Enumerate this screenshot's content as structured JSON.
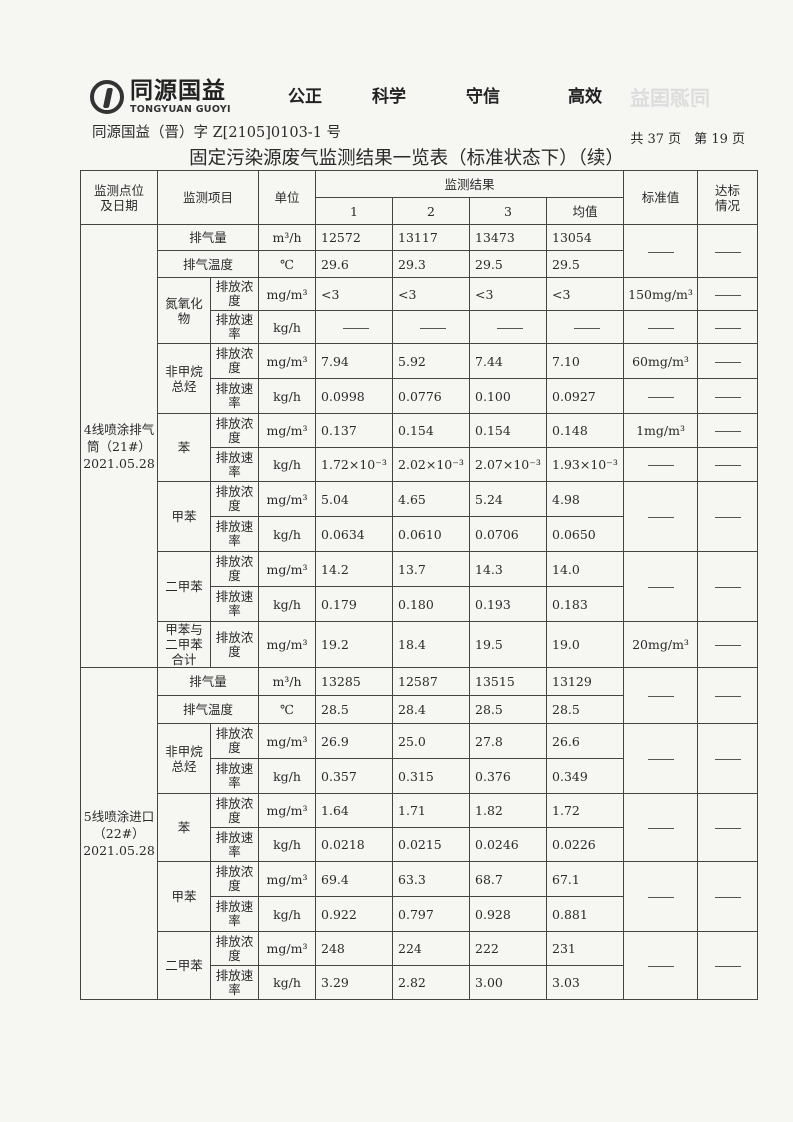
{
  "header": {
    "logo_cn": "同源国益",
    "logo_en": "TONGYUAN GUOYI",
    "motto": [
      "公正",
      "科学",
      "守信",
      "高效"
    ],
    "report_no": "同源国益（晋）字 Z[2105]0103-1 号",
    "page_info": "共 37 页　第 19 页",
    "title": "固定污染源废气监测结果一览表（标准状态下）（续）"
  },
  "table": {
    "headers": {
      "site": "监测点位及日期",
      "item": "监测项目",
      "unit": "单位",
      "results": "监测结果",
      "runs": [
        "1",
        "2",
        "3",
        "均值"
      ],
      "standard": "标准值",
      "compliance": "达标情况"
    },
    "sections": [
      {
        "site": "4线喷涂排气筒（21#）2021.05.28",
        "groups": [
          {
            "standard": "——",
            "compliance": "——",
            "rows": [
              {
                "item": "排气量",
                "unit": "m³/h",
                "values": [
                  "12572",
                  "13117",
                  "13473",
                  "13054"
                ]
              },
              {
                "item": "排气温度",
                "unit": "℃",
                "values": [
                  "29.6",
                  "29.3",
                  "29.5",
                  "29.5"
                ]
              }
            ]
          },
          {
            "item": "氮氧化物",
            "rows": [
              {
                "sub": "排放浓度",
                "unit": "mg/m³",
                "values": [
                  "<3",
                  "<3",
                  "<3",
                  "<3"
                ],
                "standard": "150mg/m³",
                "compliance": "——"
              },
              {
                "sub": "排放速率",
                "unit": "kg/h",
                "values": [
                  "——",
                  "——",
                  "——",
                  "——"
                ],
                "standard": "——",
                "compliance": "——"
              }
            ]
          },
          {
            "item": "非甲烷总烃",
            "rows": [
              {
                "sub": "排放浓度",
                "unit": "mg/m³",
                "values": [
                  "7.94",
                  "5.92",
                  "7.44",
                  "7.10"
                ],
                "standard": "60mg/m³",
                "compliance": "——"
              },
              {
                "sub": "排放速率",
                "unit": "kg/h",
                "values": [
                  "0.0998",
                  "0.0776",
                  "0.100",
                  "0.0927"
                ],
                "standard": "——",
                "compliance": "——"
              }
            ]
          },
          {
            "item": "苯",
            "rows": [
              {
                "sub": "排放浓度",
                "unit": "mg/m³",
                "values": [
                  "0.137",
                  "0.154",
                  "0.154",
                  "0.148"
                ],
                "standard": "1mg/m³",
                "compliance": "——"
              },
              {
                "sub": "排放速率",
                "unit": "kg/h",
                "values": [
                  "1.72×10⁻³",
                  "2.02×10⁻³",
                  "2.07×10⁻³",
                  "1.93×10⁻³"
                ],
                "standard": "——",
                "compliance": "——"
              }
            ]
          },
          {
            "item": "甲苯",
            "standard": "——",
            "compliance": "——",
            "rows": [
              {
                "sub": "排放浓度",
                "unit": "mg/m³",
                "values": [
                  "5.04",
                  "4.65",
                  "5.24",
                  "4.98"
                ]
              },
              {
                "sub": "排放速率",
                "unit": "kg/h",
                "values": [
                  "0.0634",
                  "0.0610",
                  "0.0706",
                  "0.0650"
                ]
              }
            ]
          },
          {
            "item": "二甲苯",
            "standard": "——",
            "compliance": "——",
            "rows": [
              {
                "sub": "排放浓度",
                "unit": "mg/m³",
                "values": [
                  "14.2",
                  "13.7",
                  "14.3",
                  "14.0"
                ]
              },
              {
                "sub": "排放速率",
                "unit": "kg/h",
                "values": [
                  "0.179",
                  "0.180",
                  "0.193",
                  "0.183"
                ]
              }
            ]
          },
          {
            "item": "甲苯与二甲苯合计",
            "rows": [
              {
                "sub": "排放浓度",
                "unit": "mg/m³",
                "values": [
                  "19.2",
                  "18.4",
                  "19.5",
                  "19.0"
                ],
                "standard": "20mg/m³",
                "compliance": "——"
              }
            ]
          }
        ]
      },
      {
        "site": "5线喷涂进口（22#）2021.05.28",
        "groups": [
          {
            "standard": "——",
            "compliance": "——",
            "rows": [
              {
                "item": "排气量",
                "unit": "m³/h",
                "values": [
                  "13285",
                  "12587",
                  "13515",
                  "13129"
                ]
              },
              {
                "item": "排气温度",
                "unit": "℃",
                "values": [
                  "28.5",
                  "28.4",
                  "28.5",
                  "28.5"
                ]
              }
            ]
          },
          {
            "item": "非甲烷总烃",
            "standard": "——",
            "compliance": "——",
            "rows": [
              {
                "sub": "排放浓度",
                "unit": "mg/m³",
                "values": [
                  "26.9",
                  "25.0",
                  "27.8",
                  "26.6"
                ]
              },
              {
                "sub": "排放速率",
                "unit": "kg/h",
                "values": [
                  "0.357",
                  "0.315",
                  "0.376",
                  "0.349"
                ]
              }
            ]
          },
          {
            "item": "苯",
            "standard": "——",
            "compliance": "——",
            "rows": [
              {
                "sub": "排放浓度",
                "unit": "mg/m³",
                "values": [
                  "1.64",
                  "1.71",
                  "1.82",
                  "1.72"
                ]
              },
              {
                "sub": "排放速率",
                "unit": "kg/h",
                "values": [
                  "0.0218",
                  "0.0215",
                  "0.0246",
                  "0.0226"
                ]
              }
            ]
          },
          {
            "item": "甲苯",
            "standard": "——",
            "compliance": "——",
            "rows": [
              {
                "sub": "排放浓度",
                "unit": "mg/m³",
                "values": [
                  "69.4",
                  "63.3",
                  "68.7",
                  "67.1"
                ]
              },
              {
                "sub": "排放速率",
                "unit": "kg/h",
                "values": [
                  "0.922",
                  "0.797",
                  "0.928",
                  "0.881"
                ]
              }
            ]
          },
          {
            "item": "二甲苯",
            "standard": "——",
            "compliance": "——",
            "rows": [
              {
                "sub": "排放浓度",
                "unit": "mg/m³",
                "values": [
                  "248",
                  "224",
                  "222",
                  "231"
                ]
              },
              {
                "sub": "排放速率",
                "unit": "kg/h",
                "values": [
                  "3.29",
                  "2.82",
                  "3.00",
                  "3.03"
                ]
              }
            ]
          }
        ]
      }
    ]
  }
}
